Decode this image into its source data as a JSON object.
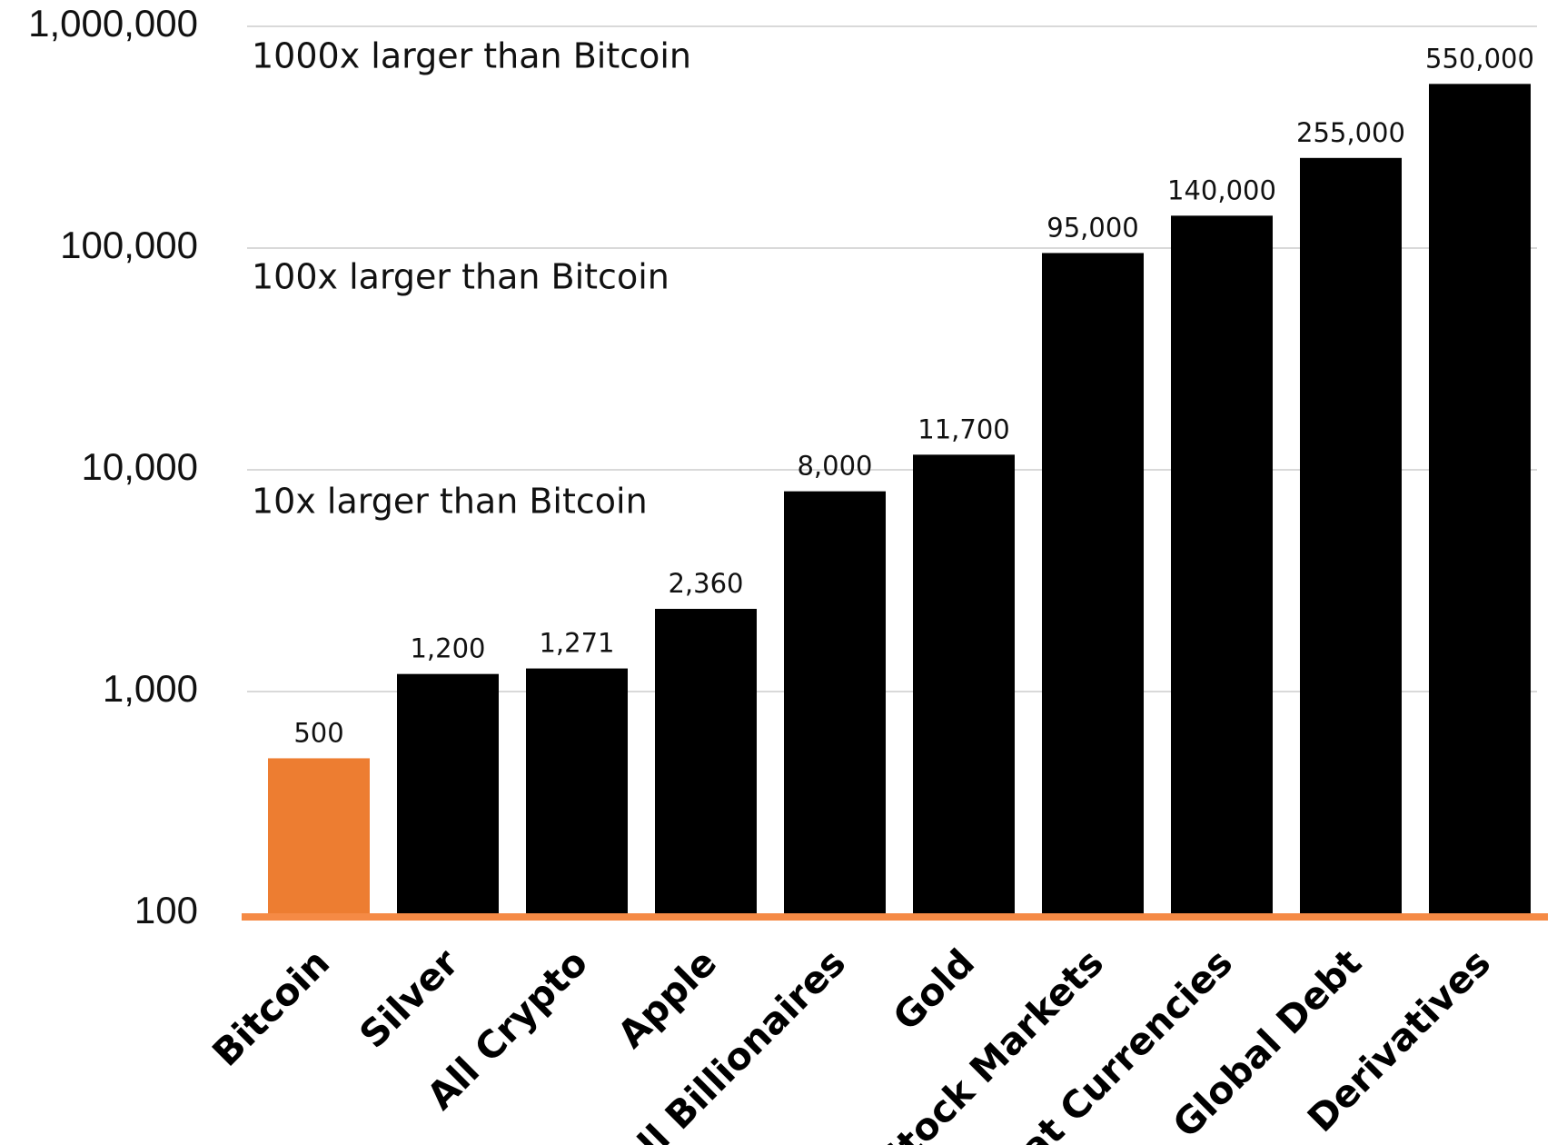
{
  "chart_data": {
    "type": "bar",
    "categories": [
      "Bitcoin",
      "Silver",
      "All Crypto",
      "Apple",
      "All Billionaires",
      "Gold",
      "Stock Markets",
      "Fiat Currencies",
      "Global Debt",
      "Derivatives"
    ],
    "values": [
      500,
      1200,
      1271,
      2360,
      8000,
      11700,
      95000,
      140000,
      255000,
      550000
    ],
    "value_labels": [
      "500",
      "1,200",
      "1,271",
      "2,360",
      "8,000",
      "11,700",
      "95,000",
      "140,000",
      "255,000",
      "550,000"
    ],
    "y_scale": "log",
    "ylim": [
      100,
      1000000
    ],
    "y_ticks": [
      100,
      1000,
      10000,
      100000,
      1000000
    ],
    "y_tick_labels": [
      "100",
      "1,000",
      "10,000",
      "100,000",
      "1,000,000"
    ],
    "grid": true,
    "annotations": [
      {
        "text": "10x larger than Bitcoin",
        "y": 10000
      },
      {
        "text": "100x larger than Bitcoin",
        "y": 100000
      },
      {
        "text": "1000x larger than Bitcoin",
        "y": 1000000
      }
    ],
    "colors": {
      "highlight": "#ED7D31",
      "bar": "#000000",
      "baseline": "#F58A45",
      "grid": "#D9D9D9"
    },
    "highlight_category": "Bitcoin",
    "title": "",
    "xlabel": "",
    "ylabel": ""
  }
}
